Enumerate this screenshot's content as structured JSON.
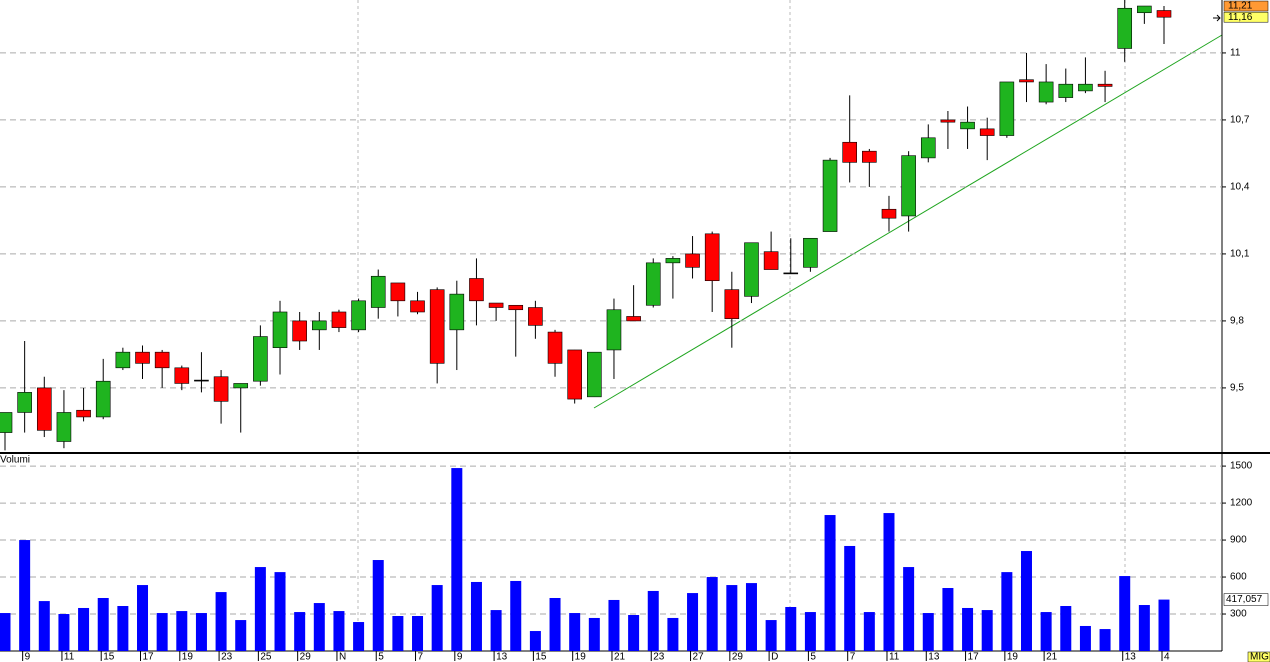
{
  "chart_data": [
    {
      "type": "candlestick",
      "open": [
        9.3,
        9.39,
        9.5,
        9.26,
        9.4,
        9.37,
        9.59,
        9.66,
        9.66,
        9.59,
        9.535,
        9.55,
        9.5,
        9.53,
        9.68,
        9.8,
        9.76,
        9.84,
        9.76,
        9.86,
        9.97,
        9.89,
        9.94,
        9.76,
        9.99,
        9.88,
        9.87,
        9.86,
        9.75,
        9.67,
        9.46,
        9.67,
        9.82,
        9.87,
        10.06,
        10.1,
        10.19,
        9.94,
        9.91,
        10.11,
        10.015,
        10.04,
        10.2,
        10.6,
        10.56,
        10.3,
        10.27,
        10.53,
        10.7,
        10.66,
        10.66,
        10.63,
        10.88,
        10.78,
        10.8,
        10.83,
        10.86,
        11.02,
        11.18,
        11.19
      ],
      "high": [
        9.39,
        9.71,
        9.55,
        9.49,
        9.5,
        9.63,
        9.68,
        9.69,
        9.67,
        9.6,
        9.66,
        9.58,
        9.52,
        9.78,
        9.89,
        9.84,
        9.84,
        9.85,
        9.9,
        10.03,
        9.97,
        9.93,
        9.95,
        9.98,
        10.08,
        9.88,
        9.87,
        9.89,
        9.76,
        9.67,
        9.66,
        9.9,
        9.96,
        10.08,
        10.09,
        10.18,
        10.2,
        10.02,
        10.15,
        10.2,
        10.17,
        10.17,
        10.53,
        10.81,
        10.57,
        10.36,
        10.56,
        10.68,
        10.74,
        10.76,
        10.71,
        10.87,
        11.0,
        10.95,
        10.93,
        10.98,
        10.92,
        11.24,
        11.21,
        11.21
      ],
      "low": [
        9.22,
        9.3,
        9.28,
        9.23,
        9.35,
        9.36,
        9.58,
        9.54,
        9.5,
        9.49,
        9.48,
        9.34,
        9.3,
        9.51,
        9.56,
        9.67,
        9.67,
        9.75,
        9.75,
        9.81,
        9.82,
        9.83,
        9.52,
        9.58,
        9.78,
        9.8,
        9.64,
        9.72,
        9.55,
        9.43,
        9.46,
        9.54,
        9.8,
        9.86,
        9.9,
        9.99,
        9.84,
        9.68,
        9.88,
        10.03,
        10.01,
        10.02,
        10.2,
        10.42,
        10.4,
        10.2,
        10.2,
        10.51,
        10.57,
        10.57,
        10.52,
        10.62,
        10.78,
        10.77,
        10.78,
        10.82,
        10.78,
        10.96,
        11.13,
        11.04
      ],
      "close": [
        9.39,
        9.48,
        9.31,
        9.39,
        9.37,
        9.53,
        9.66,
        9.61,
        9.59,
        9.52,
        9.535,
        9.44,
        9.52,
        9.73,
        9.84,
        9.71,
        9.8,
        9.77,
        9.89,
        10.0,
        9.89,
        9.84,
        9.61,
        9.92,
        9.89,
        9.86,
        9.85,
        9.78,
        9.61,
        9.45,
        9.66,
        9.85,
        9.8,
        10.06,
        10.08,
        10.04,
        9.98,
        9.81,
        10.15,
        10.03,
        10.015,
        10.17,
        10.52,
        10.51,
        10.51,
        10.26,
        10.54,
        10.62,
        10.69,
        10.69,
        10.63,
        10.87,
        10.87,
        10.87,
        10.86,
        10.86,
        10.85,
        11.2,
        11.21,
        11.16
      ],
      "up_color": "#1fb41f",
      "down_color": "#ff0000",
      "doji_color": "#000000",
      "ylim": [
        9.213,
        11.237
      ],
      "yticks": [
        {
          "value": 9.5,
          "label": "9,5"
        },
        {
          "value": 9.8,
          "label": "9,8"
        },
        {
          "value": 10.1,
          "label": "10,1"
        },
        {
          "value": 10.4,
          "label": "10,4"
        },
        {
          "value": 10.7,
          "label": "10,7"
        },
        11
      ],
      "grid": true,
      "price_labels": [
        {
          "value": 11.21,
          "label": "11,21",
          "color": "#ff9933"
        },
        {
          "value": 11.16,
          "label": "11,16",
          "color": "#ffff66"
        }
      ]
    },
    {
      "type": "bar",
      "title": "Volumi",
      "color": "#0000ff",
      "categories": [
        null,
        "9",
        null,
        "11",
        null,
        "15",
        null,
        "17",
        null,
        "19",
        null,
        "23",
        null,
        "25",
        null,
        "29",
        null,
        "N",
        null,
        "5",
        null,
        "7",
        null,
        "9",
        null,
        "13",
        null,
        "15",
        null,
        "19",
        null,
        "21",
        null,
        "23",
        null,
        "27",
        null,
        "29",
        null,
        "D",
        null,
        "5",
        null,
        "7",
        null,
        "11",
        null,
        "13",
        null,
        "17",
        null,
        "19",
        null,
        "21",
        null,
        null,
        null,
        "13",
        null,
        "4"
      ],
      "values": [
        308,
        900,
        405,
        300,
        349,
        430,
        365,
        535,
        308,
        324,
        308,
        478,
        251,
        681,
        640,
        316,
        389,
        324,
        235,
        738,
        284,
        284,
        535,
        1484,
        560,
        332,
        568,
        162,
        430,
        308,
        268,
        414,
        292,
        487,
        268,
        470,
        600,
        535,
        551,
        251,
        357,
        316,
        1103,
        852,
        316,
        1119,
        681,
        308,
        511,
        349,
        332,
        640,
        811,
        316,
        365,
        203,
        178,
        608,
        373,
        417.057
      ],
      "ylim": [
        0,
        1590
      ],
      "yticks": [
        300,
        600,
        900,
        1200,
        1500
      ],
      "grid": true,
      "last_label": {
        "value": 417.057,
        "label": "417,057"
      },
      "corner_label": "MIG"
    }
  ]
}
